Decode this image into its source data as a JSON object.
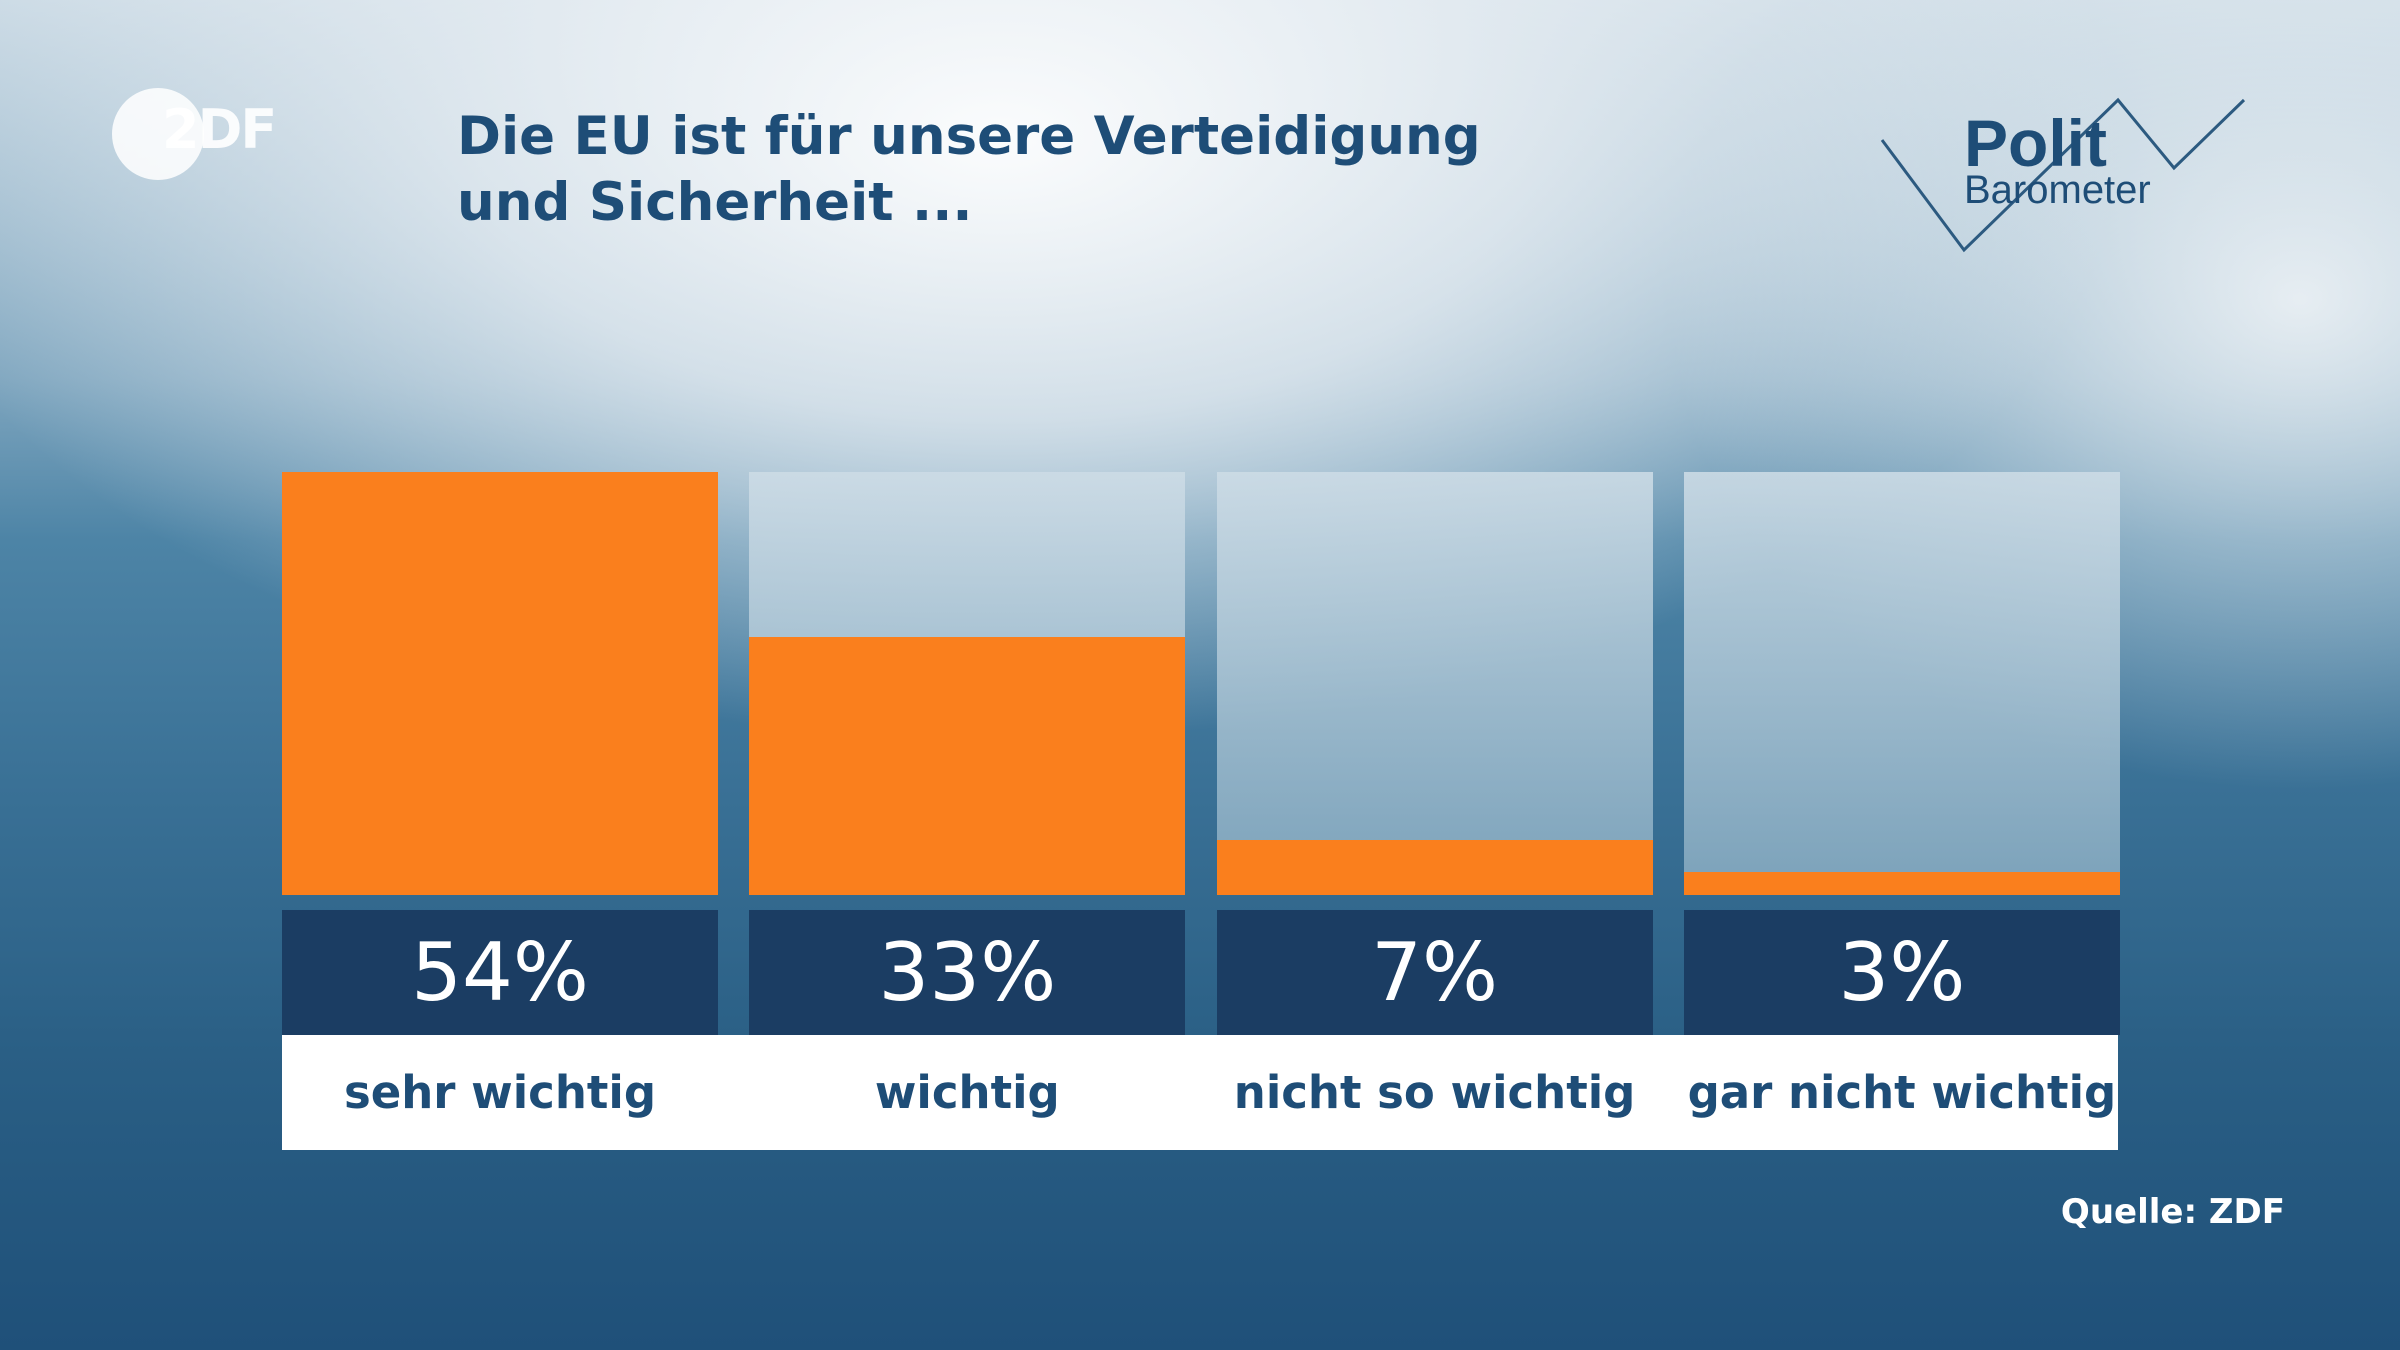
{
  "logo": {
    "brand": "ZDF",
    "brand_display": "2DF"
  },
  "title": "Die EU ist für unsere Verteidigung und Sicherheit ...",
  "polit_logo": {
    "line1": "Polit",
    "line2": "Barometer"
  },
  "colors": {
    "bar": "#fa7f1d",
    "value_box": "#1b3d63",
    "text": "#1e4d77"
  },
  "chart_data": {
    "type": "bar",
    "title": "Die EU ist für unsere Verteidigung und Sicherheit ...",
    "categories": [
      "sehr wichtig",
      "wichtig",
      "nicht so wichtig",
      "gar nicht wichtig"
    ],
    "values": [
      54,
      33,
      7,
      3
    ],
    "value_labels": [
      "54%",
      "33%",
      "7%",
      "3%"
    ],
    "unit": "%",
    "ylim": [
      0,
      54
    ],
    "grid": false,
    "legend": "none"
  },
  "source": "Quelle: ZDF"
}
